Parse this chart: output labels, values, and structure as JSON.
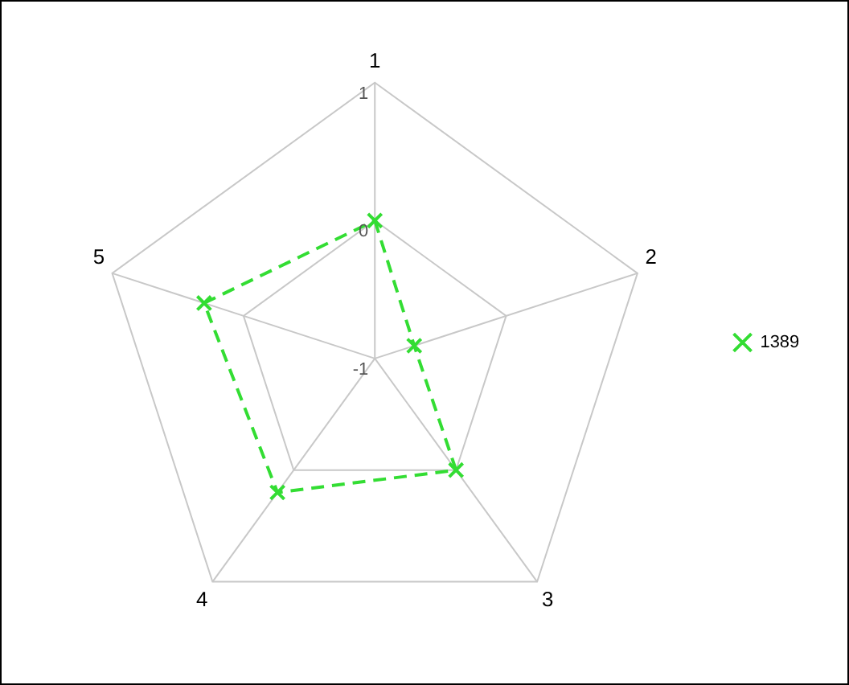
{
  "chart_data": {
    "type": "radar",
    "categories": [
      "1",
      "2",
      "3",
      "4",
      "5"
    ],
    "series": [
      {
        "name": "1389",
        "color": "#33dd33",
        "values": [
          0,
          -0.7,
          0,
          0.2,
          0.3
        ]
      }
    ],
    "ylim": [
      -1,
      1
    ],
    "yticks": [
      -1,
      0,
      1
    ],
    "grid": true,
    "legend": "right",
    "marker": "cross",
    "line_style": "dashed"
  }
}
